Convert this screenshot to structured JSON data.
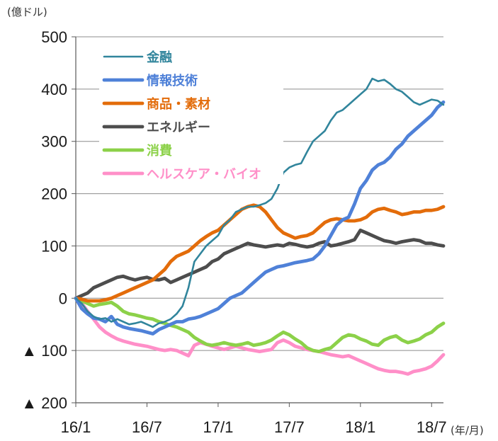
{
  "chart_data": {
    "type": "line",
    "ylabel": "(億ドル)",
    "xlabel": "(年/月)",
    "ylim": [
      -200,
      500
    ],
    "yticks": [
      500,
      400,
      300,
      200,
      100,
      0,
      -100,
      -200
    ],
    "ytick_labels": [
      "500",
      "400",
      "300",
      "200",
      "100",
      "0",
      "▲ 100",
      "▲ 200"
    ],
    "xlim": [
      0,
      31
    ],
    "xticks": [
      0,
      6,
      12,
      18,
      24,
      30
    ],
    "xtick_labels": [
      "16/1",
      "16/7",
      "17/1",
      "17/7",
      "18/1",
      "18/7"
    ],
    "grid": true,
    "legend_position": "top-left",
    "series": [
      {
        "name": "金融",
        "color": "#31859c",
        "x": [
          0,
          0.5,
          1,
          1.5,
          2,
          2.5,
          3,
          3.5,
          4,
          4.5,
          5,
          5.5,
          6,
          6.5,
          7,
          7.5,
          8,
          8.5,
          9,
          9.5,
          10,
          10.5,
          11,
          11.5,
          12,
          12.5,
          13,
          13.5,
          14,
          14.5,
          15,
          15.5,
          16,
          16.5,
          17,
          17.5,
          18,
          18.5,
          19,
          19.5,
          20,
          20.5,
          21,
          21.5,
          22,
          22.5,
          23,
          23.5,
          24,
          24.5,
          25,
          25.5,
          26,
          26.5,
          27,
          27.5,
          28,
          28.5,
          29,
          29.5,
          30,
          30.5,
          31
        ],
        "values": [
          0,
          -10,
          -25,
          -35,
          -40,
          -38,
          -45,
          -40,
          -45,
          -50,
          -48,
          -45,
          -50,
          -55,
          -48,
          -45,
          -40,
          -30,
          -15,
          20,
          70,
          85,
          100,
          110,
          120,
          140,
          150,
          165,
          170,
          175,
          175,
          178,
          182,
          190,
          210,
          240,
          250,
          255,
          258,
          280,
          300,
          310,
          320,
          340,
          355,
          360,
          370,
          380,
          390,
          400,
          420,
          415,
          418,
          410,
          400,
          395,
          385,
          375,
          370,
          375,
          380,
          378,
          370
        ]
      },
      {
        "name": "情報技術",
        "color": "#4f81d8",
        "x": [
          0,
          0.5,
          1,
          1.5,
          2,
          2.5,
          3,
          3.5,
          4,
          4.5,
          5,
          5.5,
          6,
          6.5,
          7,
          7.5,
          8,
          8.5,
          9,
          9.5,
          10,
          10.5,
          11,
          11.5,
          12,
          12.5,
          13,
          13.5,
          14,
          14.5,
          15,
          15.5,
          16,
          16.5,
          17,
          17.5,
          18,
          18.5,
          19,
          19.5,
          20,
          20.5,
          21,
          21.5,
          22,
          22.5,
          23,
          23.5,
          24,
          24.5,
          25,
          25.5,
          26,
          26.5,
          27,
          27.5,
          28,
          28.5,
          29,
          29.5,
          30,
          30.5,
          31
        ],
        "values": [
          0,
          -20,
          -30,
          -38,
          -40,
          -45,
          -35,
          -50,
          -55,
          -58,
          -60,
          -62,
          -65,
          -68,
          -60,
          -55,
          -50,
          -45,
          -45,
          -40,
          -38,
          -35,
          -30,
          -25,
          -20,
          -10,
          0,
          5,
          10,
          20,
          30,
          40,
          50,
          55,
          60,
          62,
          65,
          68,
          70,
          72,
          75,
          85,
          100,
          120,
          140,
          150,
          155,
          180,
          210,
          225,
          245,
          255,
          260,
          270,
          285,
          295,
          310,
          320,
          330,
          340,
          350,
          365,
          375
        ]
      },
      {
        "name": "商品・素材",
        "color": "#e36c0a",
        "x": [
          0,
          0.5,
          1,
          1.5,
          2,
          2.5,
          3,
          3.5,
          4,
          4.5,
          5,
          5.5,
          6,
          6.5,
          7,
          7.5,
          8,
          8.5,
          9,
          9.5,
          10,
          10.5,
          11,
          11.5,
          12,
          12.5,
          13,
          13.5,
          14,
          14.5,
          15,
          15.5,
          16,
          16.5,
          17,
          17.5,
          18,
          18.5,
          19,
          19.5,
          20,
          20.5,
          21,
          21.5,
          22,
          22.5,
          23,
          23.5,
          24,
          24.5,
          25,
          25.5,
          26,
          26.5,
          27,
          27.5,
          28,
          28.5,
          29,
          29.5,
          30,
          30.5,
          31
        ],
        "values": [
          0,
          -2,
          -5,
          -5,
          -5,
          -3,
          0,
          5,
          10,
          15,
          20,
          25,
          30,
          35,
          45,
          55,
          70,
          80,
          85,
          90,
          100,
          110,
          118,
          125,
          130,
          140,
          150,
          160,
          170,
          175,
          178,
          175,
          165,
          150,
          135,
          125,
          120,
          115,
          118,
          120,
          125,
          135,
          145,
          150,
          152,
          150,
          148,
          148,
          150,
          155,
          165,
          170,
          172,
          168,
          165,
          160,
          162,
          165,
          165,
          168,
          168,
          170,
          175
        ]
      },
      {
        "name": "エネルギー",
        "color": "#4d4d4d",
        "x": [
          0,
          0.5,
          1,
          1.5,
          2,
          2.5,
          3,
          3.5,
          4,
          4.5,
          5,
          5.5,
          6,
          6.5,
          7,
          7.5,
          8,
          8.5,
          9,
          9.5,
          10,
          10.5,
          11,
          11.5,
          12,
          12.5,
          13,
          13.5,
          14,
          14.5,
          15,
          15.5,
          16,
          16.5,
          17,
          17.5,
          18,
          18.5,
          19,
          19.5,
          20,
          20.5,
          21,
          21.5,
          22,
          22.5,
          23,
          23.5,
          24,
          24.5,
          25,
          25.5,
          26,
          26.5,
          27,
          27.5,
          28,
          28.5,
          29,
          29.5,
          30,
          30.5,
          31
        ],
        "values": [
          0,
          5,
          10,
          20,
          25,
          30,
          35,
          40,
          42,
          38,
          35,
          38,
          40,
          36,
          35,
          38,
          30,
          35,
          40,
          45,
          50,
          55,
          60,
          70,
          75,
          85,
          90,
          95,
          100,
          105,
          102,
          100,
          98,
          100,
          102,
          100,
          105,
          103,
          100,
          98,
          100,
          105,
          108,
          100,
          102,
          105,
          108,
          112,
          130,
          125,
          120,
          115,
          110,
          108,
          105,
          108,
          110,
          112,
          110,
          105,
          105,
          102,
          100
        ]
      },
      {
        "name": "消費",
        "color": "#8cd149",
        "x": [
          0,
          0.5,
          1,
          1.5,
          2,
          2.5,
          3,
          3.5,
          4,
          4.5,
          5,
          5.5,
          6,
          6.5,
          7,
          7.5,
          8,
          8.5,
          9,
          9.5,
          10,
          10.5,
          11,
          11.5,
          12,
          12.5,
          13,
          13.5,
          14,
          14.5,
          15,
          15.5,
          16,
          16.5,
          17,
          17.5,
          18,
          18.5,
          19,
          19.5,
          20,
          20.5,
          21,
          21.5,
          22,
          22.5,
          23,
          23.5,
          24,
          24.5,
          25,
          25.5,
          26,
          26.5,
          27,
          27.5,
          28,
          28.5,
          29,
          29.5,
          30,
          30.5,
          31
        ],
        "values": [
          0,
          -5,
          -10,
          -15,
          -12,
          -10,
          -8,
          -15,
          -25,
          -30,
          -32,
          -35,
          -38,
          -40,
          -45,
          -48,
          -52,
          -55,
          -60,
          -65,
          -75,
          -82,
          -88,
          -90,
          -88,
          -85,
          -88,
          -90,
          -88,
          -85,
          -90,
          -88,
          -85,
          -80,
          -72,
          -65,
          -70,
          -78,
          -85,
          -95,
          -100,
          -102,
          -98,
          -95,
          -85,
          -75,
          -70,
          -72,
          -78,
          -82,
          -88,
          -90,
          -80,
          -75,
          -72,
          -80,
          -85,
          -82,
          -78,
          -70,
          -65,
          -55,
          -48
        ]
      },
      {
        "name": "ヘルスケア・バイオ",
        "color": "#ff8fc8",
        "x": [
          0,
          0.5,
          1,
          1.5,
          2,
          2.5,
          3,
          3.5,
          4,
          4.5,
          5,
          5.5,
          6,
          6.5,
          7,
          7.5,
          8,
          8.5,
          9,
          9.5,
          10,
          10.5,
          11,
          11.5,
          12,
          12.5,
          13,
          13.5,
          14,
          14.5,
          15,
          15.5,
          16,
          16.5,
          17,
          17.5,
          18,
          18.5,
          19,
          19.5,
          20,
          20.5,
          21,
          21.5,
          22,
          22.5,
          23,
          23.5,
          24,
          24.5,
          25,
          25.5,
          26,
          26.5,
          27,
          27.5,
          28,
          28.5,
          29,
          29.5,
          30,
          30.5,
          31
        ],
        "values": [
          0,
          -10,
          -25,
          -40,
          -55,
          -65,
          -72,
          -78,
          -82,
          -85,
          -88,
          -90,
          -92,
          -95,
          -98,
          -100,
          -98,
          -100,
          -105,
          -110,
          -90,
          -85,
          -88,
          -92,
          -95,
          -98,
          -95,
          -92,
          -95,
          -98,
          -100,
          -102,
          -100,
          -98,
          -85,
          -80,
          -85,
          -92,
          -95,
          -98,
          -100,
          -102,
          -105,
          -108,
          -110,
          -112,
          -110,
          -115,
          -120,
          -125,
          -130,
          -135,
          -138,
          -140,
          -140,
          -142,
          -145,
          -140,
          -138,
          -135,
          -130,
          -120,
          -108
        ]
      }
    ]
  }
}
